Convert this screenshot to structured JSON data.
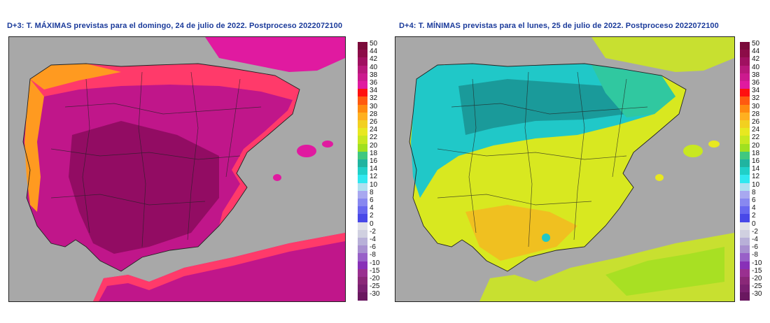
{
  "maps": [
    {
      "title": "D+3: T. MÁXIMAS previstas para el domingo, 24 de julio de 2022. Postproceso 2022072100",
      "variable": "max",
      "land_color": "#c0168a",
      "hot_color": "#8a0a5c",
      "coast_color": "#ff3a6a",
      "edge_color": "#ff9a20",
      "africa_color": "#c0168a"
    },
    {
      "title": "D+4: T. MÍNIMAS previstas para el lunes, 25 de julio de 2022. Postproceso 2022072100",
      "variable": "min",
      "land_color": "#d8e820",
      "hot_color": "#f0c020",
      "coast_color": "#20c8c8",
      "edge_color": "#30c8a0",
      "africa_color": "#c8e030"
    }
  ],
  "legend": {
    "labels": [
      "50",
      "44",
      "42",
      "40",
      "38",
      "36",
      "34",
      "32",
      "30",
      "28",
      "26",
      "24",
      "22",
      "20",
      "18",
      "16",
      "14",
      "12",
      "10",
      "8",
      "6",
      "4",
      "2",
      "0",
      "-2",
      "-4",
      "-6",
      "-8",
      "-10",
      "-15",
      "-20",
      "-25",
      "-30"
    ],
    "colors": [
      "#7a0a3a",
      "#8c0c48",
      "#a01060",
      "#b8187a",
      "#cc1a8e",
      "#e01aa0",
      "#ff1010",
      "#ff5a10",
      "#ff8a10",
      "#ffb020",
      "#f2d020",
      "#e8e820",
      "#c8e820",
      "#a0e020",
      "#40c880",
      "#20b4a0",
      "#20d0c8",
      "#30e8f0",
      "#b0e0f0",
      "#a8a8f0",
      "#8888f0",
      "#6868f0",
      "#4848e8",
      "#e0e0e8",
      "#d0d0e0",
      "#b8b0d8",
      "#a890d0",
      "#9860c8",
      "#8830b8",
      "#9a3090",
      "#8a2878",
      "#7a2070",
      "#6a1860"
    ]
  }
}
